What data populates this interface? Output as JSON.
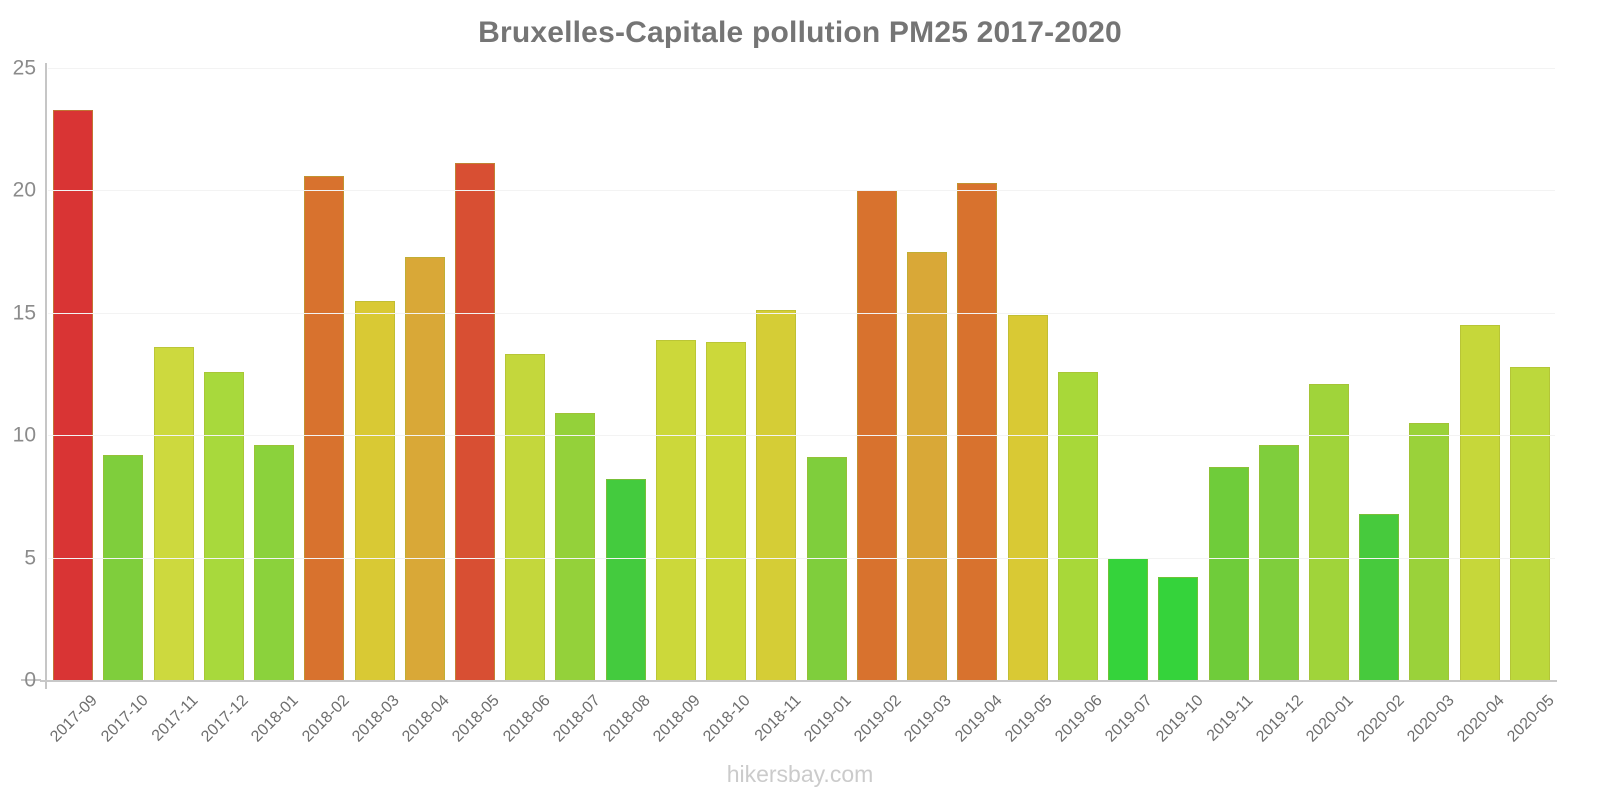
{
  "title": "Bruxelles-Capitale pollution PM25 2017-2020",
  "footer": "hikersbay.com",
  "chart_data": {
    "type": "bar",
    "title": "Bruxelles-Capitale pollution PM25 2017-2020",
    "xlabel": "",
    "ylabel": "",
    "ylim": [
      0,
      25
    ],
    "yticks": [
      0,
      5,
      10,
      15,
      20,
      25
    ],
    "grid": true,
    "legend": false,
    "categories": [
      "2017-09",
      "2017-10",
      "2017-11",
      "2017-12",
      "2018-01",
      "2018-02",
      "2018-03",
      "2018-04",
      "2018-05",
      "2018-06",
      "2018-07",
      "2018-08",
      "2018-09",
      "2018-10",
      "2018-11",
      "2019-01",
      "2019-02",
      "2019-03",
      "2019-04",
      "2019-05",
      "2019-06",
      "2019-07",
      "2019-10",
      "2019-11",
      "2019-12",
      "2020-01",
      "2020-02",
      "2020-03",
      "2020-04",
      "2020-05"
    ],
    "values": [
      23.3,
      9.2,
      13.6,
      12.6,
      9.6,
      20.6,
      15.5,
      17.3,
      21.1,
      13.3,
      10.9,
      8.2,
      13.9,
      13.8,
      15.1,
      9.1,
      20.0,
      17.5,
      20.3,
      14.9,
      12.6,
      5.0,
      4.2,
      8.7,
      9.6,
      12.1,
      6.8,
      10.5,
      14.5,
      12.8
    ],
    "colors": [
      "#d93434",
      "#7fce3c",
      "#cdd93e",
      "#a8d93c",
      "#8bd23c",
      "#d8722e",
      "#d9c934",
      "#d9a837",
      "#d84f33",
      "#c4d73c",
      "#94d13a",
      "#44cb3e",
      "#ccd83a",
      "#ccd83a",
      "#d5cd36",
      "#7fce3c",
      "#d8722e",
      "#d9a837",
      "#d8722e",
      "#d9c934",
      "#a8d839",
      "#35d33b",
      "#35d33b",
      "#6fcc3a",
      "#7fce3c",
      "#a0d43a",
      "#47ca3d",
      "#9ad23a",
      "#c6d73a",
      "#bcd83c"
    ],
    "colors_meaning": {
      "red": "#d93434",
      "red_orange": "#d84f33",
      "orange": "#d8722e",
      "gold": "#d9a837",
      "yellow": "#d9c934",
      "yellow_green": "#ccd83a",
      "green": "#7fce3c",
      "bright_green": "#35d33b"
    },
    "axis_text_color": "#8b8b8b",
    "title_color": "#757575"
  }
}
